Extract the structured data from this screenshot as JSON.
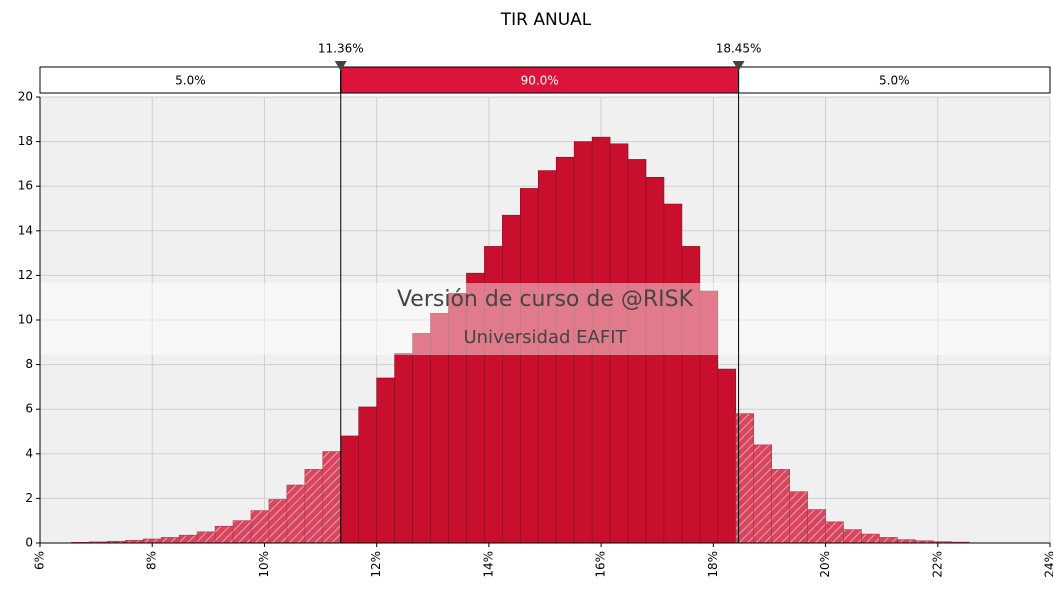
{
  "chart_data": {
    "type": "histogram",
    "title": "TIR ANUAL",
    "bins": [
      6.56,
      6.88,
      7.2,
      7.52,
      7.84,
      8.16,
      8.48,
      8.8,
      9.12,
      9.44,
      9.76,
      10.08,
      10.4,
      10.72,
      11.04,
      11.36,
      11.68,
      12.0,
      12.32,
      12.64,
      12.96,
      13.28,
      13.6,
      13.92,
      14.24,
      14.56,
      14.88,
      15.2,
      15.52,
      15.84,
      16.16,
      16.48,
      16.8,
      17.12,
      17.44,
      17.76,
      18.08,
      18.4,
      18.72,
      19.04,
      19.36,
      19.68,
      20.0,
      20.32,
      20.64,
      20.96,
      21.28,
      21.6,
      21.92,
      22.24,
      22.56
    ],
    "values": [
      0.03,
      0.05,
      0.08,
      0.12,
      0.18,
      0.25,
      0.35,
      0.5,
      0.75,
      1.0,
      1.45,
      1.95,
      2.6,
      3.3,
      4.1,
      4.8,
      6.1,
      7.4,
      8.5,
      9.4,
      10.3,
      11.2,
      12.1,
      13.3,
      14.7,
      15.9,
      16.7,
      17.3,
      18.0,
      18.2,
      17.9,
      17.2,
      16.4,
      15.2,
      13.3,
      11.3,
      7.8,
      5.8,
      4.4,
      3.3,
      2.3,
      1.5,
      0.95,
      0.6,
      0.4,
      0.25,
      0.15,
      0.1,
      0.06,
      0.04
    ],
    "color": "#c8102e",
    "tail_color": "#d9455e",
    "xlim": [
      6,
      24
    ],
    "xticks": [
      {
        "value": 6,
        "label": "6%"
      },
      {
        "value": 8,
        "label": "8%"
      },
      {
        "value": 10,
        "label": "10%"
      },
      {
        "value": 12,
        "label": "12%"
      },
      {
        "value": 14,
        "label": "14%"
      },
      {
        "value": 16,
        "label": "16%"
      },
      {
        "value": 18,
        "label": "18%"
      },
      {
        "value": 20,
        "label": "20%"
      },
      {
        "value": 22,
        "label": "22%"
      },
      {
        "value": 24,
        "label": "24%"
      }
    ],
    "ylim": [
      0,
      20
    ],
    "yticks": [
      0,
      2,
      4,
      6,
      8,
      10,
      12,
      14,
      16,
      18,
      20
    ],
    "grid": true,
    "markers": [
      11.36,
      18.45
    ],
    "marker_labels": [
      "11.36%",
      "18.45%"
    ],
    "region_values": [
      5,
      90,
      5
    ],
    "region_labels": [
      "5.0%",
      "90.0%",
      "5.0%"
    ],
    "watermark": [
      "Versión de curso de @RISK",
      "Universidad EAFIT"
    ]
  }
}
